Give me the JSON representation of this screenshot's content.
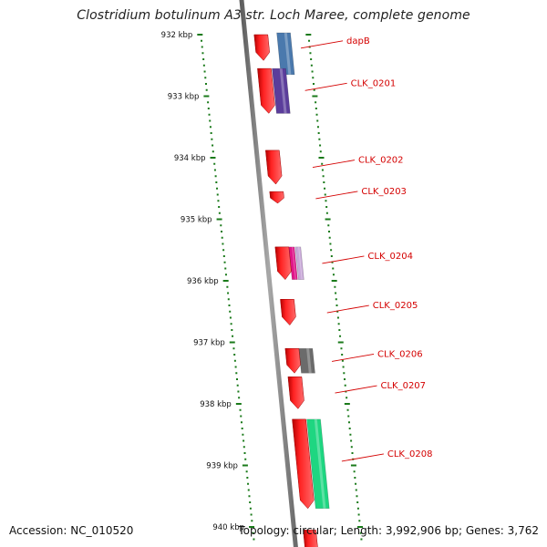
{
  "title": "Clostridium botulinum A3 str. Loch Maree, complete genome",
  "accession": "Accession: NC_010520",
  "summary": "Topology: circular; Length: 3,992,906 bp; Genes: 3,762",
  "scale_ticks": [
    "932 kbp",
    "933 kbp",
    "934 kbp",
    "935 kbp",
    "936 kbp",
    "937 kbp",
    "938 kbp",
    "939 kbp",
    "940 kbp"
  ],
  "genes": [
    {
      "name": "dapB",
      "start": 932.0,
      "end": 932.42
    },
    {
      "name": "CLK_0201",
      "start": 932.55,
      "end": 933.28
    },
    {
      "name": "CLK_0202",
      "start": 933.88,
      "end": 934.43
    },
    {
      "name": "CLK_0203",
      "start": 934.55,
      "end": 934.74
    },
    {
      "name": "CLK_0204",
      "start": 935.45,
      "end": 935.98
    },
    {
      "name": "CLK_0205",
      "start": 936.3,
      "end": 936.72
    },
    {
      "name": "CLK_0206",
      "start": 937.1,
      "end": 937.5
    },
    {
      "name": "CLK_0207",
      "start": 937.56,
      "end": 938.08
    },
    {
      "name": "CLK_0208",
      "start": 938.25,
      "end": 939.7
    }
  ],
  "features": [
    {
      "type": "steelblue",
      "color": "#4a79ad",
      "start": 931.97,
      "end": 932.65
    },
    {
      "type": "purple",
      "color": "#5b3d9b",
      "start": 932.55,
      "end": 933.28
    },
    {
      "type": "magenta",
      "color": "#e0168a",
      "start": 935.45,
      "end": 935.98
    },
    {
      "type": "lavender",
      "color": "#c8a8d8",
      "start": 935.45,
      "end": 935.98
    },
    {
      "type": "gray",
      "color": "#6b6b6b",
      "start": 937.1,
      "end": 937.5
    },
    {
      "type": "green",
      "color": "#1ed681",
      "start": 938.25,
      "end": 939.7
    }
  ],
  "colors": {
    "gene": "#ff1a1a",
    "label": "#d40000",
    "tick": "#1a7a1a",
    "backbone": "#8a8a8a"
  }
}
